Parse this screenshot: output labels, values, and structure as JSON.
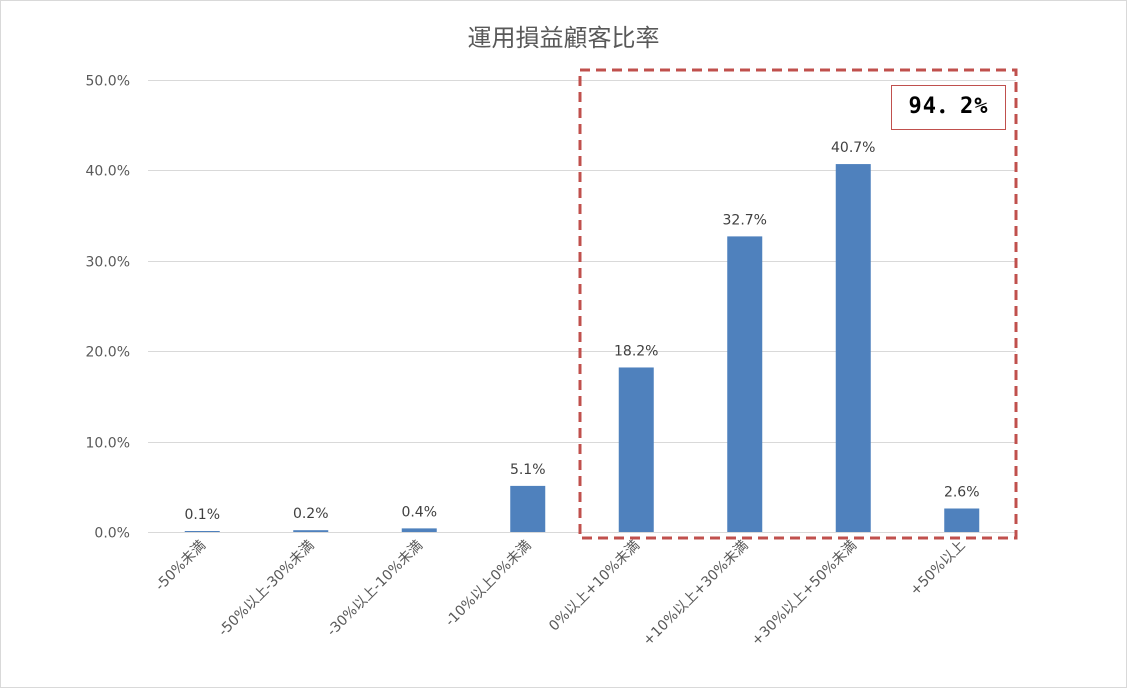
{
  "chart_data": {
    "type": "bar",
    "title": "運用損益顧客比率",
    "categories": [
      "-50%未満",
      "-50%以上-30%未満",
      "-30%以上-10%未満",
      "-10%以上0%未満",
      "0%以上+10%未満",
      "+10%以上+30%未満",
      "+30%以上+50%未満",
      "+50%以上"
    ],
    "values": [
      0.1,
      0.2,
      0.4,
      5.1,
      18.2,
      32.7,
      40.7,
      2.6
    ],
    "value_labels": [
      "0.1%",
      "0.2%",
      "0.4%",
      "5.1%",
      "18.2%",
      "32.7%",
      "40.7%",
      "2.6%"
    ],
    "yticks": [
      "0.0%",
      "10.0%",
      "20.0%",
      "30.0%",
      "40.0%",
      "50.0%"
    ],
    "ylim": [
      0,
      50
    ],
    "grid": true,
    "bar_color": "#4f81bd",
    "highlight": {
      "from_category_index": 4,
      "to_category_index": 7,
      "color": "#c0504d",
      "label": "94．2%"
    }
  }
}
